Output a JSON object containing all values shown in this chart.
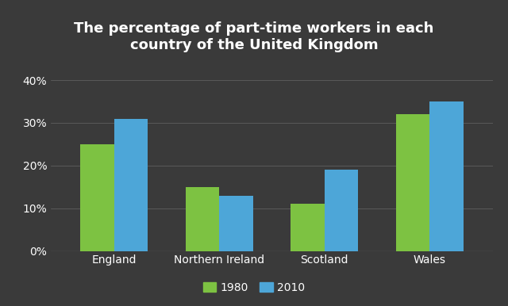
{
  "title": "The percentage of part-time workers in each\ncountry of the United Kingdom",
  "categories": [
    "England",
    "Northern Ireland",
    "Scotland",
    "Wales"
  ],
  "values_1980": [
    25,
    15,
    11,
    32
  ],
  "values_2010": [
    31,
    13,
    19,
    35
  ],
  "color_1980": "#7DC242",
  "color_2010": "#4DA6D8",
  "background_color": "#3a3a3a",
  "text_color": "#ffffff",
  "yticks": [
    0,
    10,
    20,
    30,
    40
  ],
  "ylim": [
    0,
    43
  ],
  "legend_labels": [
    "1980",
    "2010"
  ],
  "bar_width": 0.32,
  "title_fontsize": 13,
  "tick_fontsize": 10,
  "legend_fontsize": 10
}
